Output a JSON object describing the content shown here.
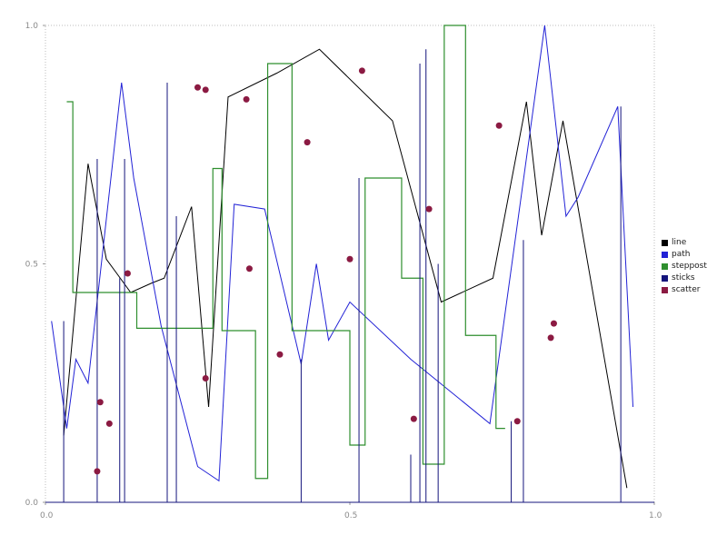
{
  "figure": {
    "background": "#ffffff",
    "frame_color": "#bdbdbd",
    "tick_color": "#9a9a9a",
    "tick_label_color": "#8a8a8a"
  },
  "chart_data": {
    "type": "mixed",
    "title": "",
    "xlabel": "",
    "ylabel": "",
    "xlim": [
      0.0,
      1.0
    ],
    "ylim": [
      0.0,
      1.0
    ],
    "grid": "dotted-frame",
    "legend_position": "right-center",
    "xticks": [
      {
        "value": 0.0,
        "label": "0.0"
      },
      {
        "value": 0.5,
        "label": "0.5"
      },
      {
        "value": 1.0,
        "label": "1.0"
      }
    ],
    "yticks": [
      {
        "value": 0.0,
        "label": "0.0"
      },
      {
        "value": 0.5,
        "label": "0.5"
      },
      {
        "value": 1.0,
        "label": "1.0"
      }
    ],
    "series": [
      {
        "name": "line",
        "type": "line",
        "color": "#000000",
        "points": [
          [
            0.03,
            0.14
          ],
          [
            0.07,
            0.71
          ],
          [
            0.1,
            0.51
          ],
          [
            0.14,
            0.44
          ],
          [
            0.175,
            0.46
          ],
          [
            0.195,
            0.47
          ],
          [
            0.24,
            0.62
          ],
          [
            0.268,
            0.2
          ],
          [
            0.3,
            0.85
          ],
          [
            0.38,
            0.9
          ],
          [
            0.45,
            0.95
          ],
          [
            0.57,
            0.8
          ],
          [
            0.65,
            0.42
          ],
          [
            0.735,
            0.47
          ],
          [
            0.79,
            0.84
          ],
          [
            0.815,
            0.56
          ],
          [
            0.85,
            0.8
          ],
          [
            0.955,
            0.03
          ]
        ]
      },
      {
        "name": "path",
        "type": "line",
        "color": "#2222d6",
        "points": [
          [
            0.01,
            0.38
          ],
          [
            0.035,
            0.155
          ],
          [
            0.05,
            0.3
          ],
          [
            0.07,
            0.25
          ],
          [
            0.125,
            0.88
          ],
          [
            0.145,
            0.68
          ],
          [
            0.19,
            0.37
          ],
          [
            0.25,
            0.075
          ],
          [
            0.285,
            0.045
          ],
          [
            0.31,
            0.625
          ],
          [
            0.36,
            0.615
          ],
          [
            0.42,
            0.29
          ],
          [
            0.445,
            0.5
          ],
          [
            0.465,
            0.34
          ],
          [
            0.5,
            0.42
          ],
          [
            0.6,
            0.3
          ],
          [
            0.73,
            0.165
          ],
          [
            0.82,
            1.0
          ],
          [
            0.855,
            0.6
          ],
          [
            0.875,
            0.64
          ],
          [
            0.94,
            0.83
          ],
          [
            0.965,
            0.2
          ]
        ]
      },
      {
        "name": "steppost",
        "type": "step-post",
        "color": "#2f8f2f",
        "points": [
          [
            0.035,
            0.84
          ],
          [
            0.045,
            0.44
          ],
          [
            0.15,
            0.365
          ],
          [
            0.275,
            0.7
          ],
          [
            0.29,
            0.36
          ],
          [
            0.345,
            0.05
          ],
          [
            0.365,
            0.92
          ],
          [
            0.405,
            0.36
          ],
          [
            0.5,
            0.12
          ],
          [
            0.525,
            0.68
          ],
          [
            0.585,
            0.47
          ],
          [
            0.62,
            0.08
          ],
          [
            0.655,
            1.0
          ],
          [
            0.69,
            0.35
          ],
          [
            0.74,
            0.155
          ],
          [
            0.755,
            0.155
          ]
        ]
      },
      {
        "name": "sticks",
        "type": "sticks",
        "color": "#14147c",
        "points": [
          [
            0.03,
            0.38
          ],
          [
            0.085,
            0.72
          ],
          [
            0.122,
            0.47
          ],
          [
            0.13,
            0.72
          ],
          [
            0.2,
            0.88
          ],
          [
            0.215,
            0.6
          ],
          [
            0.42,
            0.3
          ],
          [
            0.515,
            0.68
          ],
          [
            0.6,
            0.1
          ],
          [
            0.615,
            0.92
          ],
          [
            0.625,
            0.95
          ],
          [
            0.645,
            0.5
          ],
          [
            0.765,
            0.17
          ],
          [
            0.785,
            0.55
          ],
          [
            0.945,
            0.83
          ]
        ]
      },
      {
        "name": "scatter",
        "type": "scatter",
        "color": "#8b1a42",
        "marker_radius": 3.5,
        "points": [
          [
            0.085,
            0.065
          ],
          [
            0.09,
            0.21
          ],
          [
            0.105,
            0.165
          ],
          [
            0.135,
            0.48
          ],
          [
            0.25,
            0.87
          ],
          [
            0.263,
            0.865
          ],
          [
            0.263,
            0.26
          ],
          [
            0.33,
            0.845
          ],
          [
            0.335,
            0.49
          ],
          [
            0.385,
            0.31
          ],
          [
            0.43,
            0.755
          ],
          [
            0.5,
            0.51
          ],
          [
            0.52,
            0.905
          ],
          [
            0.605,
            0.175
          ],
          [
            0.63,
            0.615
          ],
          [
            0.745,
            0.79
          ],
          [
            0.775,
            0.17
          ],
          [
            0.83,
            0.345
          ],
          [
            0.835,
            0.375
          ]
        ]
      }
    ]
  }
}
